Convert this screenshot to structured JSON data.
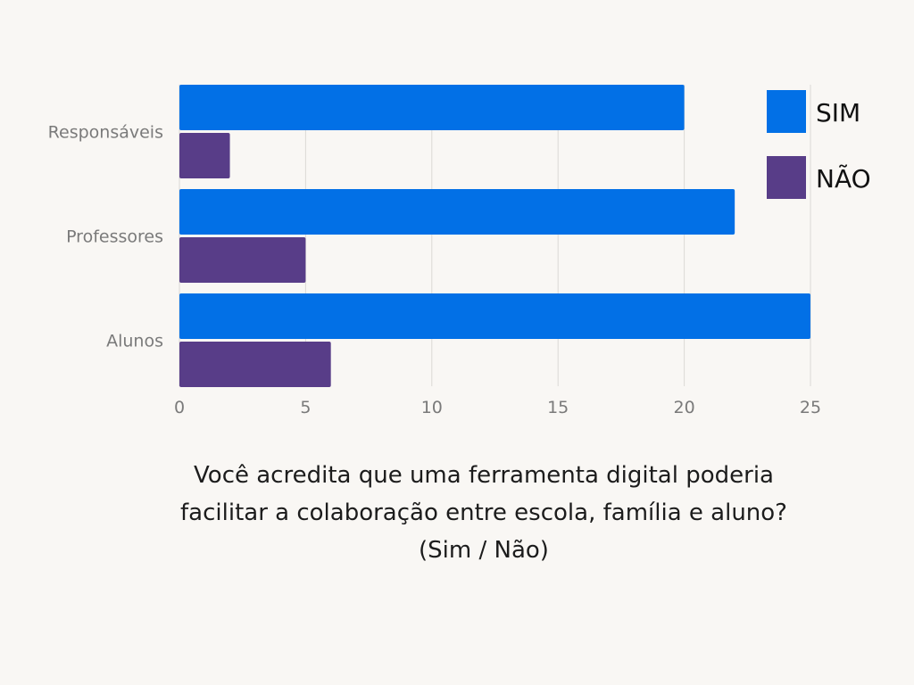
{
  "chart_data": {
    "type": "bar",
    "orientation": "horizontal",
    "categories": [
      "Responsáveis",
      "Professores",
      "Alunos"
    ],
    "series": [
      {
        "name": "SIM",
        "values": [
          20,
          22,
          25
        ],
        "color": "#0270e6"
      },
      {
        "name": "NÃO",
        "values": [
          2,
          5,
          6
        ],
        "color": "#583d88"
      }
    ],
    "x_ticks": [
      "0",
      "5",
      "10",
      "15",
      "20",
      "25"
    ],
    "xlim": [
      0,
      25
    ],
    "grid": true,
    "legend_position": "top-right",
    "caption_lines": [
      "Você acredita que uma ferramenta digital poderia",
      "facilitar a colaboração entre escola, família e aluno?",
      "(Sim / Não)"
    ]
  }
}
